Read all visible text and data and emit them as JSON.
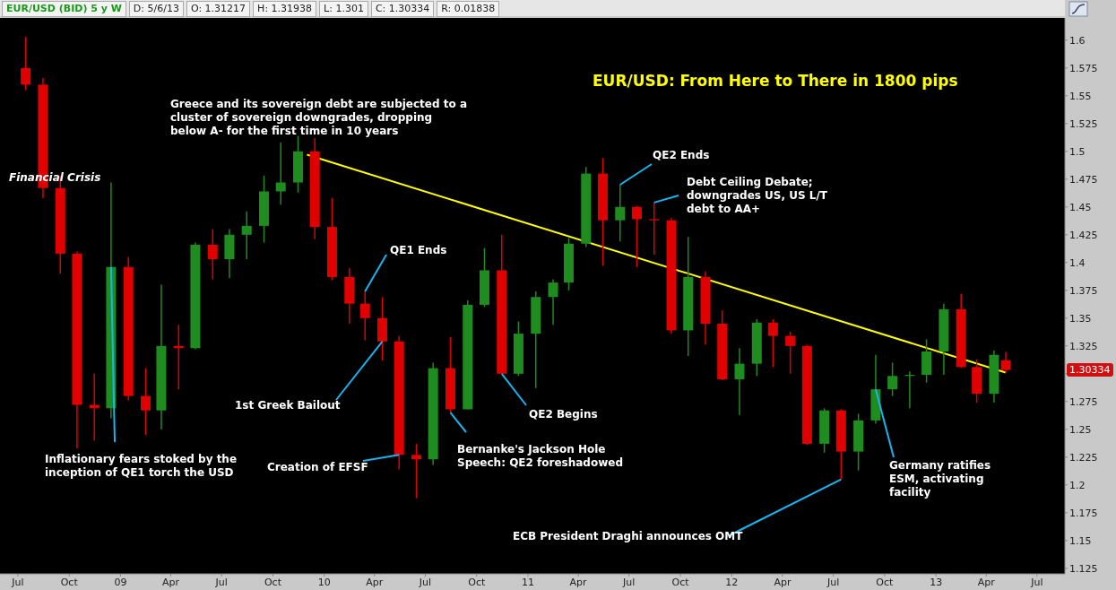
{
  "chart_data": {
    "type": "candlestick",
    "title": "EUR/USD: From Here to There in 1800 pips",
    "x": [
      "2008-07-15",
      "2008-08-15",
      "2008-09-15",
      "2008-10-15",
      "2008-11-15",
      "2008-12-15",
      "2009-01-15",
      "2009-02-15",
      "2009-03-15",
      "2009-04-15",
      "2009-05-15",
      "2009-06-15",
      "2009-07-15",
      "2009-08-15",
      "2009-09-15",
      "2009-10-15",
      "2009-11-15",
      "2009-12-15",
      "2010-01-15",
      "2010-02-15",
      "2010-03-15",
      "2010-04-15",
      "2010-05-15",
      "2010-06-15",
      "2010-07-15",
      "2010-08-15",
      "2010-09-15",
      "2010-10-15",
      "2010-11-15",
      "2010-12-15",
      "2011-01-15",
      "2011-02-15",
      "2011-03-15",
      "2011-04-15",
      "2011-05-15",
      "2011-06-15",
      "2011-07-15",
      "2011-08-15",
      "2011-09-15",
      "2011-10-15",
      "2011-11-15",
      "2011-12-15",
      "2012-01-15",
      "2012-02-15",
      "2012-03-15",
      "2012-04-15",
      "2012-05-15",
      "2012-06-15",
      "2012-07-15",
      "2012-08-15",
      "2012-09-15",
      "2012-10-15",
      "2012-11-15",
      "2012-12-15",
      "2013-01-15",
      "2013-02-15",
      "2013-03-15",
      "2013-04-15",
      "2013-05-06"
    ],
    "ohlc": [
      [
        1.575,
        1.603,
        1.555,
        1.56
      ],
      [
        1.56,
        1.566,
        1.458,
        1.467
      ],
      [
        1.467,
        1.478,
        1.39,
        1.408
      ],
      [
        1.408,
        1.41,
        1.233,
        1.272
      ],
      [
        1.272,
        1.3,
        1.24,
        1.269
      ],
      [
        1.269,
        1.472,
        1.26,
        1.396
      ],
      [
        1.396,
        1.405,
        1.276,
        1.28
      ],
      [
        1.28,
        1.305,
        1.245,
        1.267
      ],
      [
        1.267,
        1.38,
        1.25,
        1.325
      ],
      [
        1.325,
        1.344,
        1.286,
        1.323
      ],
      [
        1.323,
        1.418,
        1.322,
        1.416
      ],
      [
        1.416,
        1.43,
        1.385,
        1.403
      ],
      [
        1.403,
        1.43,
        1.386,
        1.425
      ],
      [
        1.425,
        1.446,
        1.403,
        1.433
      ],
      [
        1.433,
        1.478,
        1.418,
        1.464
      ],
      [
        1.464,
        1.508,
        1.452,
        1.472
      ],
      [
        1.472,
        1.514,
        1.463,
        1.5
      ],
      [
        1.5,
        1.512,
        1.421,
        1.432
      ],
      [
        1.432,
        1.458,
        1.384,
        1.387
      ],
      [
        1.387,
        1.395,
        1.345,
        1.363
      ],
      [
        1.363,
        1.374,
        1.33,
        1.35
      ],
      [
        1.35,
        1.369,
        1.312,
        1.329
      ],
      [
        1.329,
        1.334,
        1.214,
        1.227
      ],
      [
        1.227,
        1.237,
        1.188,
        1.223
      ],
      [
        1.223,
        1.31,
        1.218,
        1.305
      ],
      [
        1.305,
        1.333,
        1.265,
        1.268
      ],
      [
        1.268,
        1.366,
        1.268,
        1.362
      ],
      [
        1.362,
        1.413,
        1.36,
        1.393
      ],
      [
        1.393,
        1.425,
        1.3,
        1.3
      ],
      [
        1.3,
        1.347,
        1.298,
        1.336
      ],
      [
        1.336,
        1.374,
        1.287,
        1.369
      ],
      [
        1.369,
        1.385,
        1.344,
        1.382
      ],
      [
        1.382,
        1.422,
        1.375,
        1.417
      ],
      [
        1.417,
        1.486,
        1.414,
        1.48
      ],
      [
        1.48,
        1.494,
        1.397,
        1.438
      ],
      [
        1.438,
        1.47,
        1.419,
        1.45
      ],
      [
        1.45,
        1.451,
        1.396,
        1.439
      ],
      [
        1.439,
        1.454,
        1.407,
        1.438
      ],
      [
        1.438,
        1.44,
        1.336,
        1.339
      ],
      [
        1.339,
        1.423,
        1.316,
        1.387
      ],
      [
        1.387,
        1.392,
        1.326,
        1.345
      ],
      [
        1.345,
        1.357,
        1.294,
        1.295
      ],
      [
        1.295,
        1.323,
        1.263,
        1.309
      ],
      [
        1.309,
        1.349,
        1.298,
        1.346
      ],
      [
        1.346,
        1.349,
        1.306,
        1.334
      ],
      [
        1.334,
        1.338,
        1.3,
        1.325
      ],
      [
        1.325,
        1.326,
        1.236,
        1.237
      ],
      [
        1.237,
        1.269,
        1.229,
        1.267
      ],
      [
        1.267,
        1.268,
        1.205,
        1.23
      ],
      [
        1.23,
        1.264,
        1.213,
        1.258
      ],
      [
        1.258,
        1.317,
        1.255,
        1.286
      ],
      [
        1.286,
        1.31,
        1.28,
        1.298
      ],
      [
        1.298,
        1.302,
        1.269,
        1.299
      ],
      [
        1.299,
        1.331,
        1.292,
        1.32
      ],
      [
        1.32,
        1.363,
        1.299,
        1.358
      ],
      [
        1.358,
        1.372,
        1.305,
        1.306
      ],
      [
        1.306,
        1.313,
        1.274,
        1.282
      ],
      [
        1.282,
        1.321,
        1.274,
        1.317
      ],
      [
        1.31217,
        1.31938,
        1.301,
        1.30334
      ]
    ],
    "colors": [
      "#e00000",
      "#e00000",
      "#e00000",
      "#e00000",
      "#e00000",
      "#1e8c1e",
      "#e00000",
      "#e00000",
      "#1e8c1e",
      "#e00000",
      "#1e8c1e",
      "#e00000",
      "#1e8c1e",
      "#1e8c1e",
      "#1e8c1e",
      "#1e8c1e",
      "#1e8c1e",
      "#e00000",
      "#e00000",
      "#e00000",
      "#e00000",
      "#e00000",
      "#e00000",
      "#e00000",
      "#1e8c1e",
      "#e00000",
      "#1e8c1e",
      "#1e8c1e",
      "#e00000",
      "#1e8c1e",
      "#1e8c1e",
      "#1e8c1e",
      "#1e8c1e",
      "#1e8c1e",
      "#e00000",
      "#1e8c1e",
      "#e00000",
      "#e00000",
      "#e00000",
      "#1e8c1e",
      "#e00000",
      "#e00000",
      "#1e8c1e",
      "#1e8c1e",
      "#e00000",
      "#e00000",
      "#e00000",
      "#1e8c1e",
      "#e00000",
      "#1e8c1e",
      "#1e8c1e",
      "#1e8c1e",
      "#1e8c1e",
      "#1e8c1e",
      "#1e8c1e",
      "#e00000",
      "#e00000",
      "#1e8c1e",
      "#e00000"
    ],
    "series": [
      {
        "type": "line",
        "color": "#ffff00",
        "x": [
          "2009-12-01",
          "2013-05-06"
        ],
        "values": [
          1.497,
          1.301
        ]
      }
    ],
    "xlim": [
      "2008-05-30",
      "2013-08-20"
    ],
    "xticks": [
      {
        "value": "2008-07-01",
        "label": "Jul"
      },
      {
        "value": "2008-10-01",
        "label": "Oct"
      },
      {
        "value": "2009-01-01",
        "label": "09"
      },
      {
        "value": "2009-04-01",
        "label": "Apr"
      },
      {
        "value": "2009-07-01",
        "label": "Jul"
      },
      {
        "value": "2009-10-01",
        "label": "Oct"
      },
      {
        "value": "2010-01-01",
        "label": "10"
      },
      {
        "value": "2010-04-01",
        "label": "Apr"
      },
      {
        "value": "2010-07-01",
        "label": "Jul"
      },
      {
        "value": "2010-10-01",
        "label": "Oct"
      },
      {
        "value": "2011-01-01",
        "label": "11"
      },
      {
        "value": "2011-04-01",
        "label": "Apr"
      },
      {
        "value": "2011-07-01",
        "label": "Jul"
      },
      {
        "value": "2011-10-01",
        "label": "Oct"
      },
      {
        "value": "2012-01-01",
        "label": "12"
      },
      {
        "value": "2012-04-01",
        "label": "Apr"
      },
      {
        "value": "2012-07-01",
        "label": "Jul"
      },
      {
        "value": "2012-10-01",
        "label": "Oct"
      },
      {
        "value": "2013-01-01",
        "label": "13"
      },
      {
        "value": "2013-04-01",
        "label": "Apr"
      },
      {
        "value": "2013-07-01",
        "label": "Jul"
      }
    ],
    "ylim": [
      1.12,
      1.62
    ],
    "yticks": [
      1.125,
      1.15,
      1.175,
      1.2,
      1.225,
      1.25,
      1.275,
      {
        "value": 1.3,
        "label": null
      },
      1.325,
      1.35,
      1.375,
      1.4,
      1.425,
      1.45,
      1.475,
      1.5,
      1.525,
      1.55,
      1.575,
      1.6
    ],
    "annotations": [
      "EUR/USD (BID) 5 y W",
      "D: 5/6/13",
      "O: 1.31217",
      "H: 1.31938",
      "L: 1.301",
      "C: 1.30334",
      "R: 0.01838",
      "Financial Crisis",
      "1.30334",
      "Greece and its sovereign debt are subjected to a cluster of sovereign downgrades, dropping below A- for the first time in 10 years",
      {
        "text": "Inflationary fears stoked by the inception of QE1 torch the USD",
        "x": "2008-12-15",
        "y": 1.396
      },
      {
        "text": "1st Greek Bailout",
        "x": "2010-04-15",
        "y": 1.329
      },
      {
        "text": "Creation of EFSF",
        "x": "2010-05-15",
        "y": 1.227
      },
      {
        "text": "QE1 Ends",
        "x": "2010-03-15",
        "y": 1.374
      },
      {
        "text": "Bernanke's Jackson Hole Speech: QE2 foreshadowed",
        "x": "2010-08-15",
        "y": 1.265
      },
      {
        "text": "QE2 Begins",
        "x": "2010-11-15",
        "y": 1.3
      },
      {
        "text": "QE2 Ends",
        "x": "2011-06-15",
        "y": 1.47
      },
      {
        "text": "Debt Ceiling Debate; downgrades US, US L/T debt to AA+",
        "x": "2011-08-15",
        "y": 1.454
      },
      {
        "text": "ECB President Draghi announces OMT",
        "x": "2012-07-15",
        "y": 1.205
      },
      {
        "text": "Germany ratifies ESM, activating facility",
        "x": "2012-09-15",
        "y": 1.286
      }
    ]
  }
}
